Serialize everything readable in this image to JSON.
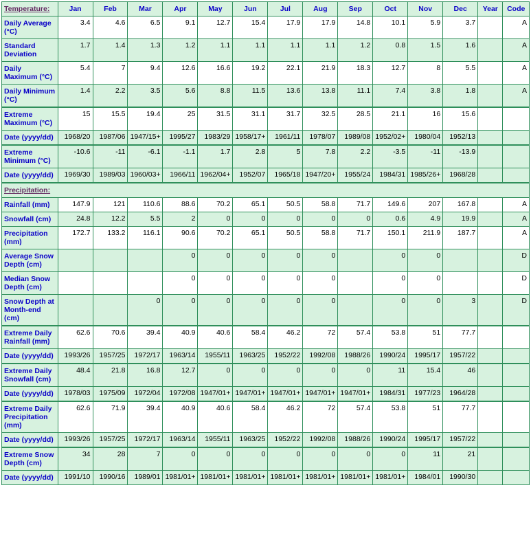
{
  "header": {
    "label": "Temperature:",
    "months": [
      "Jan",
      "Feb",
      "Mar",
      "Apr",
      "May",
      "Jun",
      "Jul",
      "Aug",
      "Sep",
      "Oct",
      "Nov",
      "Dec"
    ],
    "year": "Year",
    "code": "Code"
  },
  "colors": {
    "header_bg": "#d7f2df",
    "grid": "#2f8f5b",
    "label_text": "#0a00c8",
    "section_text": "#642a62"
  },
  "rows": [
    {
      "id": "daily_avg",
      "label": "Daily Average (°C)",
      "bg": "white",
      "v": [
        "3.4",
        "4.6",
        "6.5",
        "9.1",
        "12.7",
        "15.4",
        "17.9",
        "17.9",
        "14.8",
        "10.1",
        "5.9",
        "3.7",
        "",
        "A"
      ]
    },
    {
      "id": "std_dev",
      "label": "Standard Deviation",
      "bg": "green",
      "v": [
        "1.7",
        "1.4",
        "1.3",
        "1.2",
        "1.1",
        "1.1",
        "1.1",
        "1.1",
        "1.2",
        "0.8",
        "1.5",
        "1.6",
        "",
        "A"
      ]
    },
    {
      "id": "daily_max",
      "label": "Daily Maximum (°C)",
      "bg": "white",
      "v": [
        "5.4",
        "7",
        "9.4",
        "12.6",
        "16.6",
        "19.2",
        "22.1",
        "21.9",
        "18.3",
        "12.7",
        "8",
        "5.5",
        "",
        "A"
      ]
    },
    {
      "id": "daily_min",
      "label": "Daily Minimum (°C)",
      "bg": "green",
      "v": [
        "1.4",
        "2.2",
        "3.5",
        "5.6",
        "8.8",
        "11.5",
        "13.6",
        "13.8",
        "11.1",
        "7.4",
        "3.8",
        "1.8",
        "",
        "A"
      ]
    },
    {
      "id": "ext_max",
      "label": "Extreme Maximum (°C)",
      "bg": "white",
      "heavytop": true,
      "v": [
        "15",
        "15.5",
        "19.4",
        "25",
        "31.5",
        "31.1",
        "31.7",
        "32.5",
        "28.5",
        "21.1",
        "16",
        "15.6",
        "",
        ""
      ],
      "bold": [
        7
      ]
    },
    {
      "id": "ext_max_date",
      "label": "Date (yyyy/dd)",
      "bg": "green",
      "v": [
        "1968/20",
        "1987/06",
        "1947/15+",
        "1995/27",
        "1983/29",
        "1958/17+",
        "1961/11",
        "1978/07",
        "1989/08",
        "1952/02+",
        "1980/04",
        "1952/13",
        "",
        ""
      ],
      "bold": [
        7
      ]
    },
    {
      "id": "ext_min",
      "label": "Extreme Minimum (°C)",
      "bg": "green",
      "heavytop": true,
      "v": [
        "-10.6",
        "-11",
        "-6.1",
        "-1.1",
        "1.7",
        "2.8",
        "5",
        "7.8",
        "2.2",
        "-3.5",
        "-11",
        "-13.9",
        "",
        ""
      ],
      "bold": [
        11
      ]
    },
    {
      "id": "ext_min_date",
      "label": "Date (yyyy/dd)",
      "bg": "green",
      "v": [
        "1969/30",
        "1989/03",
        "1960/03+",
        "1966/11",
        "1962/04+",
        "1952/07",
        "1965/18",
        "1947/20+",
        "1955/24",
        "1984/31",
        "1985/26+",
        "1968/28",
        "",
        ""
      ],
      "bold": [
        11
      ]
    },
    {
      "id": "precip_hdr",
      "label": "Precipitation:",
      "section": true
    },
    {
      "id": "rainfall",
      "label": "Rainfall (mm)",
      "bg": "white",
      "v": [
        "147.9",
        "121",
        "110.6",
        "88.6",
        "70.2",
        "65.1",
        "50.5",
        "58.8",
        "71.7",
        "149.6",
        "207",
        "167.8",
        "",
        "A"
      ]
    },
    {
      "id": "snowfall",
      "label": "Snowfall (cm)",
      "bg": "green",
      "v": [
        "24.8",
        "12.2",
        "5.5",
        "2",
        "0",
        "0",
        "0",
        "0",
        "0",
        "0.6",
        "4.9",
        "19.9",
        "",
        "A"
      ]
    },
    {
      "id": "precip",
      "label": "Precipitation (mm)",
      "bg": "white",
      "v": [
        "172.7",
        "133.2",
        "116.1",
        "90.6",
        "70.2",
        "65.1",
        "50.5",
        "58.8",
        "71.7",
        "150.1",
        "211.9",
        "187.7",
        "",
        "A"
      ]
    },
    {
      "id": "avg_snow_depth",
      "label": "Average Snow Depth (cm)",
      "bg": "green",
      "v": [
        "",
        "",
        "",
        "0",
        "0",
        "0",
        "0",
        "0",
        "",
        "0",
        "0",
        "",
        "",
        "D"
      ]
    },
    {
      "id": "med_snow_depth",
      "label": "Median Snow Depth (cm)",
      "bg": "white",
      "v": [
        "",
        "",
        "",
        "0",
        "0",
        "0",
        "0",
        "0",
        "",
        "0",
        "0",
        "",
        "",
        "D"
      ]
    },
    {
      "id": "snow_depth_eom",
      "label": "Snow Depth at Month-end (cm)",
      "bg": "green",
      "v": [
        "",
        "",
        "0",
        "0",
        "0",
        "0",
        "0",
        "0",
        "",
        "0",
        "0",
        "3",
        "",
        "D"
      ]
    },
    {
      "id": "ext_daily_rain",
      "label": "Extreme Daily Rainfall (mm)",
      "bg": "white",
      "heavytop": true,
      "v": [
        "62.6",
        "70.6",
        "39.4",
        "40.9",
        "40.6",
        "58.4",
        "46.2",
        "72",
        "57.4",
        "53.8",
        "51",
        "77.7",
        "",
        ""
      ],
      "bold": [
        11
      ]
    },
    {
      "id": "ext_daily_rain_date",
      "label": "Date (yyyy/dd)",
      "bg": "green",
      "v": [
        "1993/26",
        "1957/25",
        "1972/17",
        "1963/14",
        "1955/11",
        "1963/25",
        "1952/22",
        "1992/08",
        "1988/26",
        "1990/24",
        "1995/17",
        "1957/22",
        "",
        ""
      ],
      "bold": [
        11
      ]
    },
    {
      "id": "ext_daily_snow",
      "label": "Extreme Daily Snowfall (cm)",
      "bg": "green",
      "heavytop": true,
      "v": [
        "48.4",
        "21.8",
        "16.8",
        "12.7",
        "0",
        "0",
        "0",
        "0",
        "0",
        "11",
        "15.4",
        "46",
        "",
        ""
      ],
      "bold": [
        0
      ]
    },
    {
      "id": "ext_daily_snow_date",
      "label": "Date (yyyy/dd)",
      "bg": "green",
      "v": [
        "1978/03",
        "1975/09",
        "1972/04",
        "1972/08",
        "1947/01+",
        "1947/01+",
        "1947/01+",
        "1947/01+",
        "1947/01+",
        "1984/31",
        "1977/23",
        "1964/28",
        "",
        ""
      ],
      "bold": [
        0
      ]
    },
    {
      "id": "ext_daily_precip",
      "label": "Extreme Daily Precipitation (mm)",
      "bg": "white",
      "heavytop": true,
      "v": [
        "62.6",
        "71.9",
        "39.4",
        "40.9",
        "40.6",
        "58.4",
        "46.2",
        "72",
        "57.4",
        "53.8",
        "51",
        "77.7",
        "",
        ""
      ],
      "bold": [
        11
      ]
    },
    {
      "id": "ext_daily_precip_date",
      "label": "Date (yyyy/dd)",
      "bg": "green",
      "v": [
        "1993/26",
        "1957/25",
        "1972/17",
        "1963/14",
        "1955/11",
        "1963/25",
        "1952/22",
        "1992/08",
        "1988/26",
        "1990/24",
        "1995/17",
        "1957/22",
        "",
        ""
      ],
      "bold": [
        11
      ]
    },
    {
      "id": "ext_snow_depth",
      "label": "Extreme Snow Depth (cm)",
      "bg": "green",
      "heavytop": true,
      "v": [
        "34",
        "28",
        "7",
        "0",
        "0",
        "0",
        "0",
        "0",
        "0",
        "0",
        "11",
        "21",
        "",
        ""
      ],
      "bold": [
        0
      ]
    },
    {
      "id": "ext_snow_depth_date",
      "label": "Date (yyyy/dd)",
      "bg": "green",
      "v": [
        "1991/10",
        "1990/16",
        "1989/01",
        "1981/01+",
        "1981/01+",
        "1981/01+",
        "1981/01+",
        "1981/01+",
        "1981/01+",
        "1981/01+",
        "1984/01",
        "1990/30",
        "",
        ""
      ],
      "bold": [
        0
      ]
    }
  ]
}
